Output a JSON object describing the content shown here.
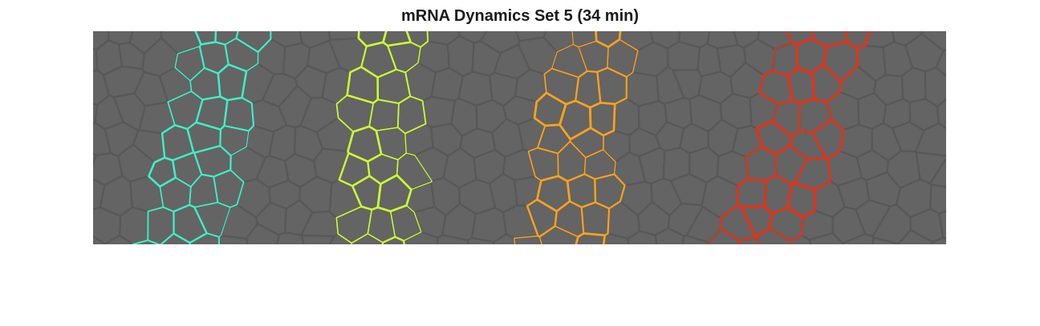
{
  "figure": {
    "title": "mRNA Dynamics Set 5 (34 min)"
  },
  "image": {
    "background_color": "#646464",
    "cell_border_color": "#585858",
    "stripes": [
      {
        "name": "stripe-1",
        "color": "#3ef0c8"
      },
      {
        "name": "stripe-2",
        "color": "#ccff33"
      },
      {
        "name": "stripe-3",
        "color": "#ffa31a"
      },
      {
        "name": "stripe-4",
        "color": "#ff2a0a"
      }
    ]
  }
}
